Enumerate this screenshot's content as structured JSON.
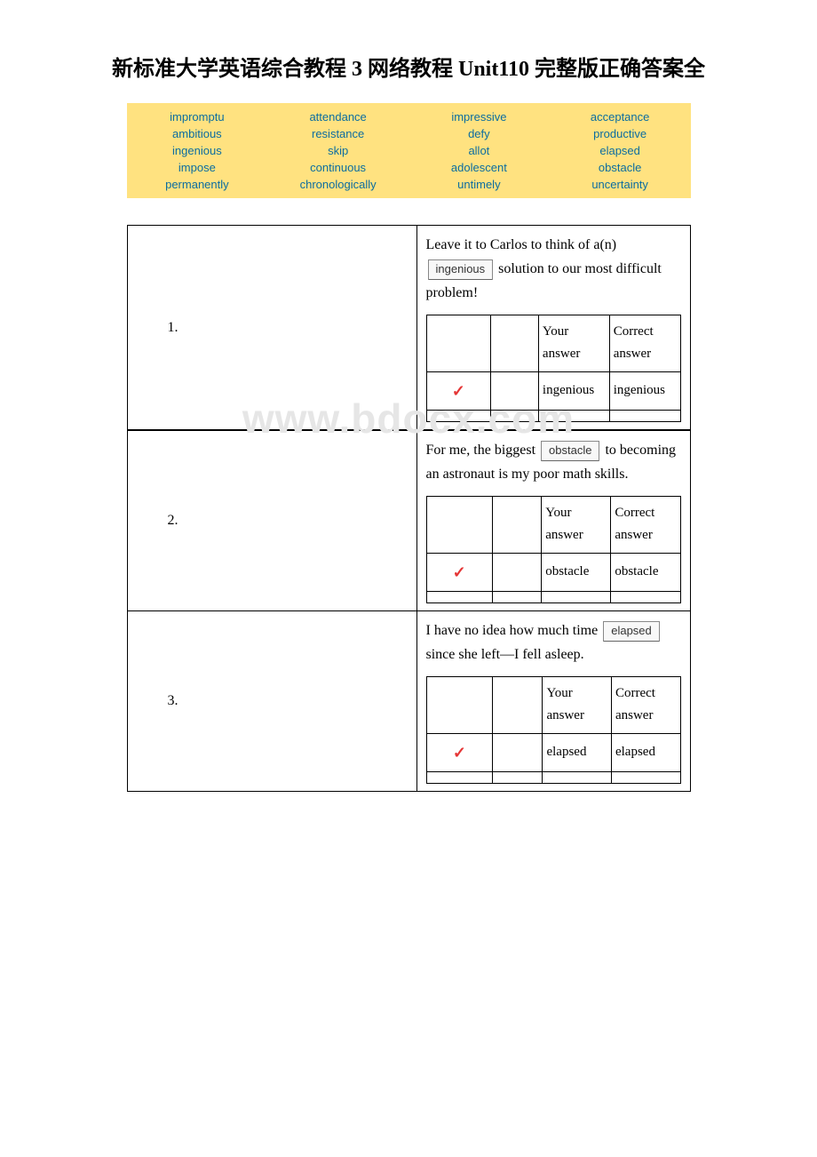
{
  "title": "新标准大学英语综合教程 3 网络教程 Unit110 完整版正确答案全",
  "watermark": "www.bdocx.com",
  "word_bank": {
    "rows": [
      [
        "impromptu",
        "attendance",
        "impressive",
        "acceptance"
      ],
      [
        "ambitious",
        "resistance",
        "defy",
        "productive"
      ],
      [
        "ingenious",
        "skip",
        "allot",
        "elapsed"
      ],
      [
        "impose",
        "continuous",
        "adolescent",
        "obstacle"
      ],
      [
        "permanently",
        "chronologically",
        "untimely",
        "uncertainty"
      ]
    ],
    "background_color": "#ffe280",
    "text_color": "#0b6d9f",
    "font_family": "Arial",
    "font_size": 13
  },
  "answer_header": {
    "your": "Your answer",
    "correct": "Correct answer"
  },
  "questions": [
    {
      "number": "1.",
      "sentence_pre": "Leave it to Carlos to think of a(n) ",
      "chosen": "ingenious",
      "sentence_post": " solution to our most difficult problem!",
      "your_answer": "ingenious",
      "correct_answer": "ingenious"
    },
    {
      "number": "2.",
      "sentence_pre": "For me, the biggest ",
      "chosen": "obstacle",
      "sentence_post": " to becoming an astronaut is my poor math skills.",
      "your_answer": "obstacle",
      "correct_answer": "obstacle"
    },
    {
      "number": "3.",
      "sentence_pre": "I have no idea how much time ",
      "chosen": "elapsed",
      "sentence_post": " since she left—I fell asleep.",
      "your_answer": "elapsed",
      "correct_answer": "elapsed"
    }
  ]
}
